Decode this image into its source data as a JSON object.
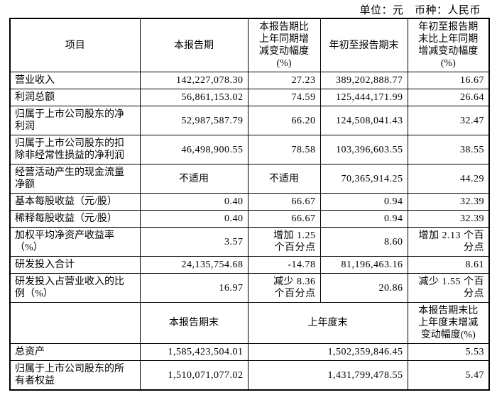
{
  "page": {
    "unit_currency_note": "单位：元　币种：人民币",
    "background": "#ffffff",
    "text_color": "#000000",
    "border_color": "#000000"
  },
  "table": {
    "header": {
      "item": "项目",
      "current_period": "本报告期",
      "current_yoy_change": "本报告期比\n上年同期增\n减变动幅度\n(%)",
      "year_to_date": "年初至报告期末",
      "ytd_yoy_change": "年初至报告期\n末比上年同期\n增减变动幅度\n(%)"
    },
    "rows": [
      {
        "label": "营业收入",
        "cells": [
          {
            "t": "142,227,078.30"
          },
          {
            "t": "27.23"
          },
          {
            "t": "389,202,888.77"
          },
          {
            "t": "16.67"
          }
        ]
      },
      {
        "label": "利润总额",
        "cells": [
          {
            "t": "56,861,153.02"
          },
          {
            "t": "74.59"
          },
          {
            "t": "125,444,171.99"
          },
          {
            "t": "26.64"
          }
        ]
      },
      {
        "label": "归属于上市公司股东的净\n利润",
        "cells": [
          {
            "t": "52,987,587.79"
          },
          {
            "t": "66.20"
          },
          {
            "t": "124,508,041.43"
          },
          {
            "t": "32.47"
          }
        ]
      },
      {
        "label": "归属于上市公司股东的扣\n除非经常性损益的净利润",
        "cells": [
          {
            "t": "46,498,900.55"
          },
          {
            "t": "78.58"
          },
          {
            "t": "103,396,603.55"
          },
          {
            "t": "38.55"
          }
        ]
      },
      {
        "label": "经营活动产生的现金流量\n净额",
        "cells": [
          {
            "t": "不适用",
            "align": "center"
          },
          {
            "t": "不适用",
            "align": "center"
          },
          {
            "t": "70,365,914.25"
          },
          {
            "t": "44.29"
          }
        ]
      },
      {
        "label": "基本每股收益（元/股）",
        "cells": [
          {
            "t": "0.40"
          },
          {
            "t": "66.67"
          },
          {
            "t": "0.94"
          },
          {
            "t": "32.39"
          }
        ]
      },
      {
        "label": "稀释每股收益（元/股）",
        "cells": [
          {
            "t": "0.40"
          },
          {
            "t": "66.67"
          },
          {
            "t": "0.94"
          },
          {
            "t": "32.39"
          }
        ]
      },
      {
        "label": "加权平均净资产收益率\n（%）",
        "cells": [
          {
            "t": "3.57"
          },
          {
            "t": "增加 1.25\n个百分点"
          },
          {
            "t": "8.60"
          },
          {
            "t": "增加 2.13 个百\n分点"
          }
        ]
      },
      {
        "label": "研发投入合计",
        "cells": [
          {
            "t": "24,135,754.68"
          },
          {
            "t": "-14.78"
          },
          {
            "t": "81,196,463.16"
          },
          {
            "t": "8.61"
          }
        ]
      },
      {
        "label": "研发投入占营业收入的比\n例（%）",
        "cells": [
          {
            "t": "16.97"
          },
          {
            "t": "减少 8.36\n个百分点"
          },
          {
            "t": "20.86"
          },
          {
            "t": "减少 1.55 个百\n分点"
          }
        ]
      }
    ],
    "second_header": {
      "item": "",
      "period_end": "本报告期末",
      "prior_year_end": "上年度末",
      "period_end_change": "本报告期末比\n上年度末增减\n变动幅度(%)"
    },
    "bottom_rows": [
      {
        "label": "总资产",
        "cells": [
          {
            "t": "1,585,423,504.01"
          },
          {
            "t": "1,502,359,846.45",
            "colspan": 2
          },
          {
            "t": "5.53"
          }
        ]
      },
      {
        "label": "归属于上市公司股东的所\n有者权益",
        "cells": [
          {
            "t": "1,510,071,077.02"
          },
          {
            "t": "1,431,799,478.55",
            "colspan": 2
          },
          {
            "t": "5.47"
          }
        ]
      }
    ]
  }
}
